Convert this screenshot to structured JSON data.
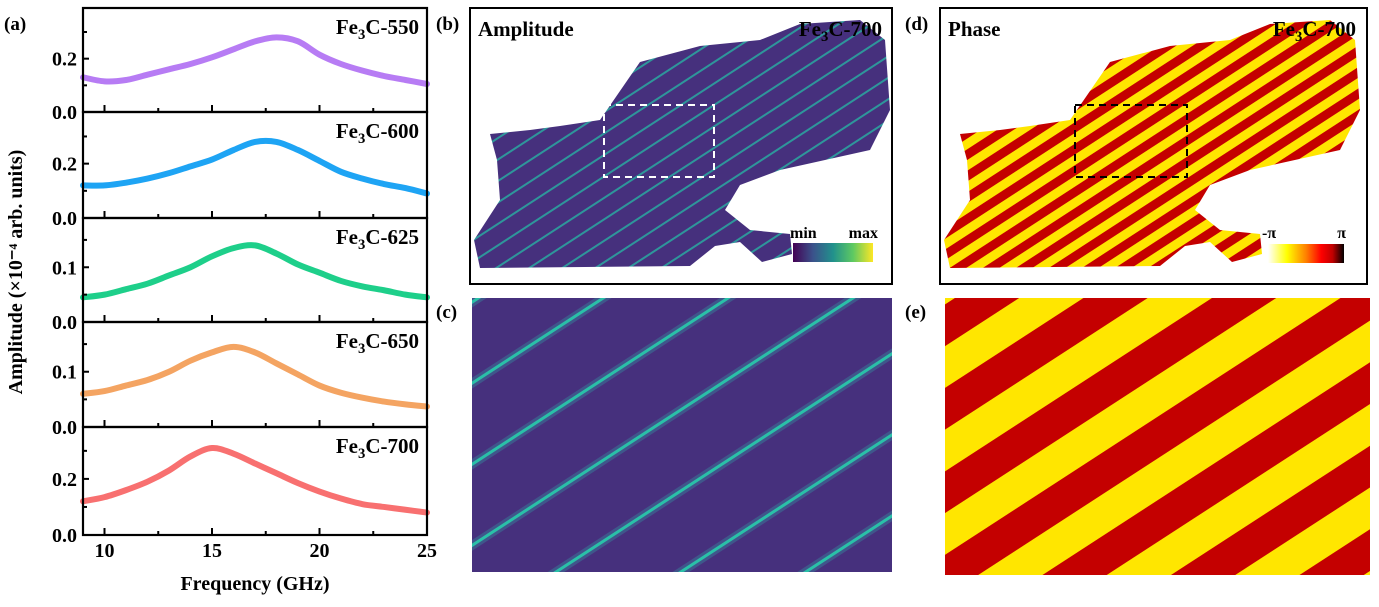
{
  "panel_labels": {
    "a": "(a)",
    "b": "(b)",
    "c": "(c)",
    "d": "(d)",
    "e": "(e)"
  },
  "chart_data": {
    "type": "line",
    "xlabel": "Frequency (GHz)",
    "ylabel": "Amplitude (×10⁻⁴ arb. units)",
    "xlim": [
      9,
      25
    ],
    "xticks": [
      10,
      15,
      20,
      25
    ],
    "x": [
      9,
      10,
      11,
      12,
      13,
      14,
      15,
      16,
      17,
      18,
      19,
      20,
      21,
      22,
      23,
      24,
      25
    ],
    "series": [
      {
        "name": "Fe3C-550",
        "color": "#b77cf4",
        "ylim": [
          0,
          0.39
        ],
        "yticks": [
          0.0,
          0.2
        ],
        "values": [
          0.13,
          0.115,
          0.12,
          0.14,
          0.16,
          0.18,
          0.205,
          0.235,
          0.265,
          0.28,
          0.265,
          0.215,
          0.18,
          0.155,
          0.135,
          0.12,
          0.105
        ]
      },
      {
        "name": "Fe3C-600",
        "color": "#1ea4f4",
        "ylim": [
          0,
          0.39
        ],
        "yticks": [
          0.0,
          0.2
        ],
        "values": [
          0.12,
          0.12,
          0.13,
          0.145,
          0.165,
          0.19,
          0.215,
          0.25,
          0.28,
          0.28,
          0.25,
          0.21,
          0.17,
          0.145,
          0.125,
          0.11,
          0.09
        ]
      },
      {
        "name": "Fe3C-625",
        "color": "#1ecf8a",
        "ylim": [
          0,
          0.19
        ],
        "yticks": [
          0.0,
          0.1
        ],
        "values": [
          0.045,
          0.05,
          0.06,
          0.07,
          0.085,
          0.1,
          0.12,
          0.135,
          0.14,
          0.125,
          0.105,
          0.09,
          0.075,
          0.065,
          0.058,
          0.05,
          0.045
        ]
      },
      {
        "name": "Fe3C-650",
        "color": "#f4a462",
        "ylim": [
          0,
          0.19
        ],
        "yticks": [
          0.0,
          0.1
        ],
        "values": [
          0.06,
          0.065,
          0.075,
          0.085,
          0.1,
          0.12,
          0.135,
          0.145,
          0.135,
          0.115,
          0.095,
          0.075,
          0.062,
          0.053,
          0.046,
          0.041,
          0.037
        ]
      },
      {
        "name": "Fe3C-700",
        "color": "#f87070",
        "ylim": [
          0,
          0.385
        ],
        "yticks": [
          0.0,
          0.2
        ],
        "values": [
          0.12,
          0.135,
          0.16,
          0.19,
          0.23,
          0.28,
          0.31,
          0.29,
          0.255,
          0.22,
          0.185,
          0.155,
          0.13,
          0.11,
          0.1,
          0.09,
          0.08
        ]
      }
    ]
  },
  "maps": {
    "amplitude": {
      "title": "Amplitude",
      "sample": "Fe3C-700",
      "cbar_min": "min",
      "cbar_max": "max",
      "colors": [
        "#440154",
        "#3b528b",
        "#21918c",
        "#5ec962",
        "#fde725"
      ],
      "background": "#46307d",
      "stripe": "#2aa8a0"
    },
    "phase": {
      "title": "Phase",
      "sample": "Fe3C-700",
      "cbar_min": "-π",
      "cbar_max": "π",
      "colors": [
        "#ffffff",
        "#ffff00",
        "#ff8000",
        "#ff0000",
        "#c00000",
        "#000000"
      ],
      "stripe_a": "#ffe600",
      "stripe_b": "#c40000"
    }
  }
}
